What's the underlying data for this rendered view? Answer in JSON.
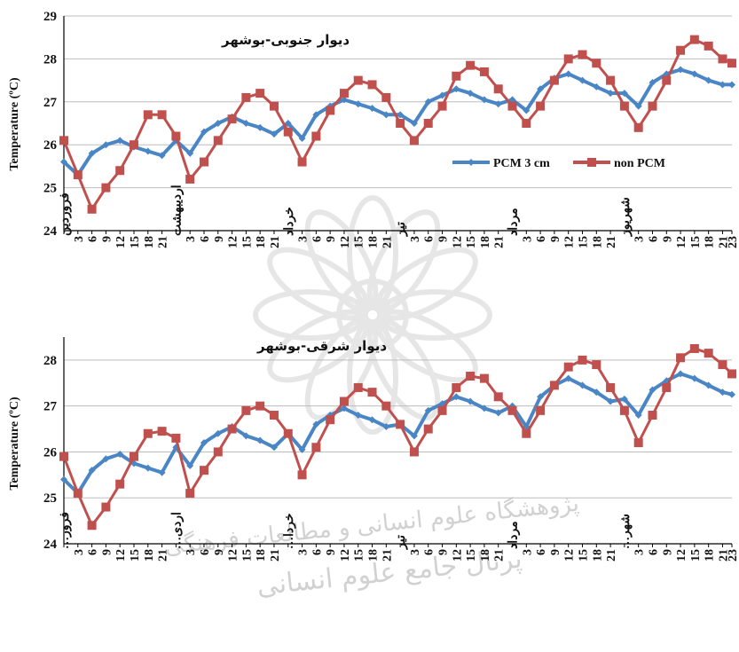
{
  "colors": {
    "pcm": "#4a86c5",
    "non_pcm": "#c0504d",
    "grid": "#bdbdbd",
    "axis": "#000000"
  },
  "watermark": {
    "icon": "rosette-emblem-icon",
    "line1": "پژوهشگاه علوم انسانی و مطالعات فرهنگی",
    "line2": "پرتال جامع علوم انسانی"
  },
  "chart_data": [
    {
      "type": "line",
      "title": "دیوار جنوبی-بوشهر",
      "ylabel": "Temperature (ºC)",
      "xlabel": "",
      "ylim": [
        24,
        29
      ],
      "yticks": [
        24,
        25,
        26,
        27,
        28,
        29
      ],
      "grid": true,
      "legend": "middle-right",
      "month_labels": [
        "فروردین",
        "اردیبهشت",
        "خرداد",
        "تیر",
        "مرداد",
        "شهریور"
      ],
      "day_hours": [
        "3",
        "6",
        "9",
        "12",
        "15",
        "18",
        "21"
      ],
      "x_tick_labels": [
        "فروردین",
        "3",
        "6",
        "9",
        "12",
        "15",
        "18",
        "21",
        "اردیبهشت",
        "3",
        "6",
        "9",
        "12",
        "15",
        "18",
        "21",
        "خرداد",
        "3",
        "6",
        "9",
        "12",
        "15",
        "18",
        "21",
        "تیر",
        "3",
        "6",
        "9",
        "12",
        "15",
        "18",
        "21",
        "مرداد",
        "3",
        "6",
        "9",
        "12",
        "15",
        "18",
        "21",
        "شهریور",
        "3",
        "6",
        "9",
        "12",
        "15",
        "18",
        "21",
        "23"
      ],
      "x": [
        0,
        3,
        6,
        9,
        12,
        15,
        18,
        21,
        24,
        27,
        30,
        33,
        36,
        39,
        42,
        45,
        48,
        51,
        54,
        57,
        60,
        63,
        66,
        69,
        72,
        75,
        78,
        81,
        84,
        87,
        90,
        93,
        96,
        99,
        102,
        105,
        108,
        111,
        114,
        117,
        120,
        123,
        126,
        129,
        132,
        135,
        138,
        141,
        143
      ],
      "series": [
        {
          "name": "PCM 3 cm",
          "values": [
            25.6,
            25.3,
            25.8,
            26.0,
            26.1,
            25.95,
            25.85,
            25.75,
            26.1,
            25.8,
            26.3,
            26.5,
            26.65,
            26.5,
            26.4,
            26.25,
            26.5,
            26.15,
            26.7,
            26.9,
            27.05,
            26.95,
            26.85,
            26.7,
            26.7,
            26.5,
            27.0,
            27.15,
            27.3,
            27.2,
            27.05,
            26.95,
            27.05,
            26.8,
            27.3,
            27.55,
            27.65,
            27.5,
            27.35,
            27.2,
            27.2,
            26.9,
            27.45,
            27.65,
            27.75,
            27.65,
            27.5,
            27.4,
            27.4
          ]
        },
        {
          "name": "non PCM",
          "values": [
            26.1,
            25.3,
            24.5,
            25.0,
            25.4,
            26.0,
            26.7,
            26.7,
            26.2,
            25.2,
            25.6,
            26.1,
            26.6,
            27.1,
            27.2,
            26.9,
            26.3,
            25.6,
            26.2,
            26.8,
            27.2,
            27.5,
            27.4,
            27.1,
            26.5,
            26.1,
            26.5,
            26.9,
            27.6,
            27.85,
            27.7,
            27.3,
            26.9,
            26.5,
            26.9,
            27.5,
            28.0,
            28.1,
            27.9,
            27.5,
            26.9,
            26.4,
            26.9,
            27.5,
            28.2,
            28.45,
            28.3,
            28.0,
            27.9
          ]
        }
      ]
    },
    {
      "type": "line",
      "title": "دیوار شرقی-بوشهر",
      "ylabel": "Temperature (ºC)",
      "xlabel": "",
      "ylim": [
        24,
        28.5
      ],
      "yticks": [
        24,
        25,
        26,
        27,
        28
      ],
      "grid": true,
      "legend": "",
      "month_labels": [
        "فرور…",
        "اردی…",
        "خردا…",
        "تیر",
        "مرداد",
        "شهر…"
      ],
      "day_hours": [
        "3",
        "6",
        "9",
        "12",
        "15",
        "18",
        "21"
      ],
      "x_tick_labels": [
        "فرور…",
        "3",
        "6",
        "9",
        "12",
        "15",
        "18",
        "21",
        "اردی…",
        "3",
        "6",
        "9",
        "12",
        "15",
        "18",
        "21",
        "خردا…",
        "3",
        "6",
        "9",
        "12",
        "15",
        "18",
        "21",
        "تیر",
        "3",
        "6",
        "9",
        "12",
        "15",
        "18",
        "21",
        "مرداد",
        "3",
        "6",
        "9",
        "12",
        "15",
        "18",
        "21",
        "شهر…",
        "3",
        "6",
        "9",
        "12",
        "15",
        "18",
        "21",
        "23"
      ],
      "x": [
        0,
        3,
        6,
        9,
        12,
        15,
        18,
        21,
        24,
        27,
        30,
        33,
        36,
        39,
        42,
        45,
        48,
        51,
        54,
        57,
        60,
        63,
        66,
        69,
        72,
        75,
        78,
        81,
        84,
        87,
        90,
        93,
        96,
        99,
        102,
        105,
        108,
        111,
        114,
        117,
        120,
        123,
        126,
        129,
        132,
        135,
        138,
        141,
        143
      ],
      "series": [
        {
          "name": "PCM 3 cm",
          "values": [
            25.4,
            25.1,
            25.6,
            25.85,
            25.95,
            25.75,
            25.65,
            25.55,
            26.1,
            25.7,
            26.2,
            26.4,
            26.55,
            26.35,
            26.25,
            26.1,
            26.4,
            26.05,
            26.6,
            26.8,
            26.95,
            26.8,
            26.7,
            26.55,
            26.6,
            26.35,
            26.9,
            27.05,
            27.2,
            27.1,
            26.95,
            26.85,
            27.0,
            26.55,
            27.2,
            27.45,
            27.6,
            27.45,
            27.3,
            27.1,
            27.15,
            26.8,
            27.35,
            27.55,
            27.7,
            27.6,
            27.45,
            27.3,
            27.25
          ]
        },
        {
          "name": "non PCM",
          "values": [
            25.9,
            25.1,
            24.4,
            24.8,
            25.3,
            25.9,
            26.4,
            26.45,
            26.3,
            25.1,
            25.6,
            26.0,
            26.5,
            26.9,
            27.0,
            26.8,
            26.4,
            25.5,
            26.1,
            26.7,
            27.1,
            27.4,
            27.3,
            27.0,
            26.6,
            26.0,
            26.5,
            26.9,
            27.4,
            27.65,
            27.6,
            27.2,
            26.9,
            26.4,
            26.9,
            27.45,
            27.85,
            28.0,
            27.9,
            27.4,
            26.9,
            26.2,
            26.8,
            27.4,
            28.05,
            28.25,
            28.15,
            27.9,
            27.7
          ]
        }
      ]
    }
  ]
}
